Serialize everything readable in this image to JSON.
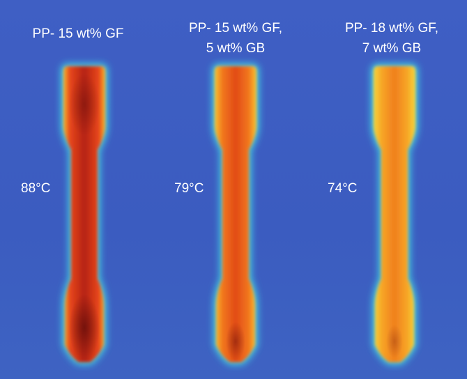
{
  "specimens": [
    {
      "label": [
        "PP- 15 wt% GF"
      ],
      "temperature": "88°C"
    },
    {
      "label": [
        "PP- 15 wt% GF,",
        "5 wt% GB"
      ],
      "temperature": "79°C"
    },
    {
      "label": [
        "PP- 18 wt% GF,",
        "7 wt% GB"
      ],
      "temperature": "74°C"
    }
  ]
}
